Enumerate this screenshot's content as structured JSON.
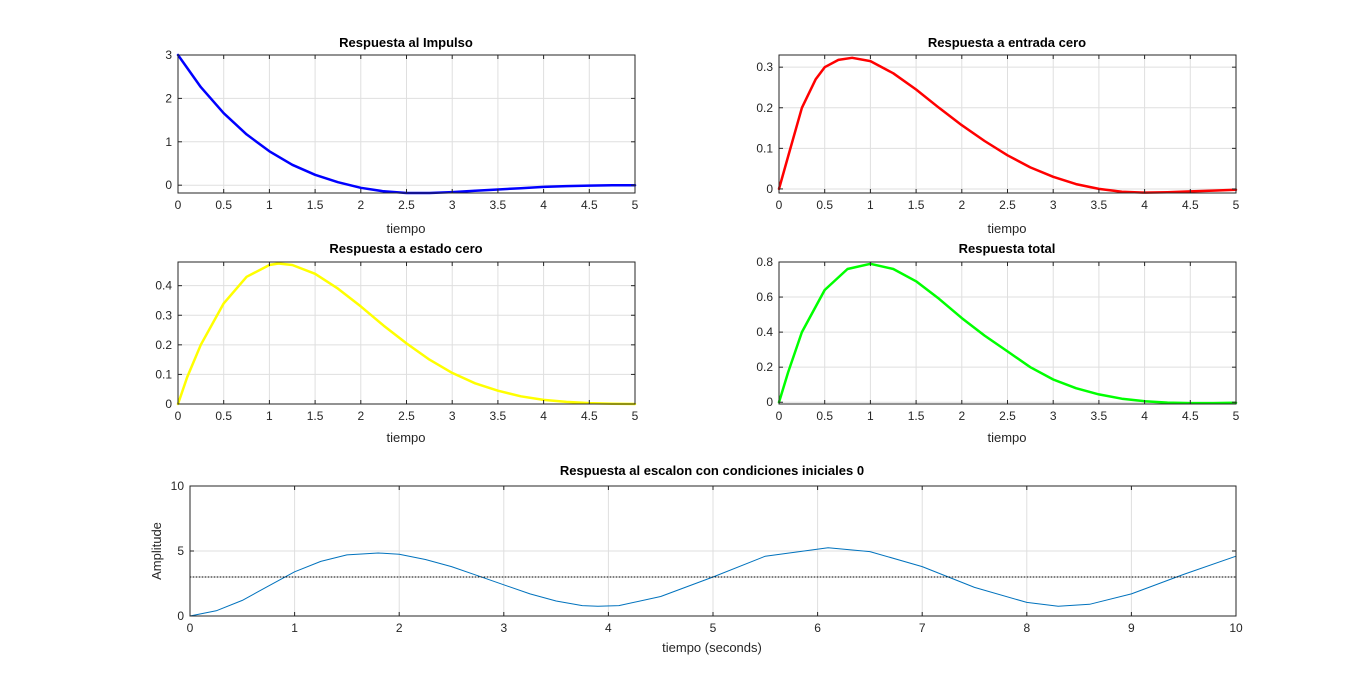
{
  "figure": {
    "background": "#ffffff",
    "axes_color": "#262626",
    "grid_color": "#dfdfdf"
  },
  "chart_data": [
    {
      "type": "line",
      "title": "Respuesta al Impulso",
      "xlabel": "tiempo",
      "ylabel": "",
      "xlim": [
        0,
        5
      ],
      "ylim": [
        -0.18,
        3.0
      ],
      "grid": true,
      "xticks": [
        "0",
        "0.5",
        "1",
        "1.5",
        "2",
        "2.5",
        "3",
        "3.5",
        "4",
        "4.5",
        "5"
      ],
      "yticks": [
        "0",
        "1",
        "2",
        "3"
      ],
      "series": [
        {
          "color": "#0000ff",
          "line_width": 2.5,
          "x": [
            0,
            0.25,
            0.5,
            0.75,
            1.0,
            1.25,
            1.5,
            1.75,
            2.0,
            2.25,
            2.5,
            2.75,
            3.0,
            3.25,
            3.5,
            3.75,
            4.0,
            4.25,
            4.5,
            4.75,
            5.0
          ],
          "y": [
            3.0,
            2.26,
            1.66,
            1.17,
            0.78,
            0.47,
            0.24,
            0.07,
            -0.06,
            -0.14,
            -0.18,
            -0.18,
            -0.16,
            -0.13,
            -0.1,
            -0.07,
            -0.04,
            -0.02,
            -0.01,
            0.0,
            0.0
          ]
        }
      ]
    },
    {
      "type": "line",
      "title": "Respuesta a entrada cero",
      "xlabel": "tiempo",
      "ylabel": "",
      "xlim": [
        0,
        5
      ],
      "ylim": [
        -0.01,
        0.33
      ],
      "grid": true,
      "xticks": [
        "0",
        "0.5",
        "1",
        "1.5",
        "2",
        "2.5",
        "3",
        "3.5",
        "4",
        "4.5",
        "5"
      ],
      "yticks": [
        "0",
        "0.1",
        "0.2",
        "0.3"
      ],
      "series": [
        {
          "color": "#ff0000",
          "line_width": 2.5,
          "x": [
            0,
            0.1,
            0.25,
            0.4,
            0.5,
            0.65,
            0.8,
            1.0,
            1.25,
            1.5,
            1.75,
            2.0,
            2.25,
            2.5,
            2.75,
            3.0,
            3.25,
            3.5,
            3.75,
            4.0,
            4.25,
            4.5,
            4.75,
            5.0
          ],
          "y": [
            0,
            0.08,
            0.2,
            0.27,
            0.3,
            0.318,
            0.323,
            0.315,
            0.285,
            0.245,
            0.2,
            0.157,
            0.118,
            0.083,
            0.053,
            0.03,
            0.012,
            0.0,
            -0.007,
            -0.009,
            -0.008,
            -0.006,
            -0.004,
            -0.002
          ]
        }
      ]
    },
    {
      "type": "line",
      "title": "Respuesta a estado cero",
      "xlabel": "tiempo",
      "ylabel": "",
      "xlim": [
        0,
        5
      ],
      "ylim": [
        0,
        0.48
      ],
      "grid": true,
      "xticks": [
        "0",
        "0.5",
        "1",
        "1.5",
        "2",
        "2.5",
        "3",
        "3.5",
        "4",
        "4.5",
        "5"
      ],
      "yticks": [
        "0",
        "0.1",
        "0.2",
        "0.3",
        "0.4"
      ],
      "series": [
        {
          "color": "#ffff00",
          "line_width": 2.5,
          "x": [
            0,
            0.1,
            0.25,
            0.5,
            0.75,
            1.0,
            1.1,
            1.25,
            1.5,
            1.75,
            2.0,
            2.25,
            2.5,
            2.75,
            3.0,
            3.25,
            3.5,
            3.75,
            4.0,
            4.25,
            4.5,
            4.75,
            5.0
          ],
          "y": [
            0,
            0.09,
            0.2,
            0.34,
            0.43,
            0.47,
            0.475,
            0.47,
            0.44,
            0.39,
            0.33,
            0.265,
            0.205,
            0.15,
            0.105,
            0.07,
            0.045,
            0.026,
            0.014,
            0.007,
            0.003,
            0.001,
            0.0
          ]
        }
      ]
    },
    {
      "type": "line",
      "title": "Respuesta total",
      "xlabel": "tiempo",
      "ylabel": "",
      "xlim": [
        0,
        5
      ],
      "ylim": [
        -0.01,
        0.8
      ],
      "grid": true,
      "xticks": [
        "0",
        "0.5",
        "1",
        "1.5",
        "2",
        "2.5",
        "3",
        "3.5",
        "4",
        "4.5",
        "5"
      ],
      "yticks": [
        "0",
        "0.2",
        "0.4",
        "0.6",
        "0.8"
      ],
      "series": [
        {
          "color": "#00ff00",
          "line_width": 2.5,
          "x": [
            0,
            0.1,
            0.25,
            0.5,
            0.75,
            1.0,
            1.25,
            1.5,
            1.75,
            2.0,
            2.25,
            2.5,
            2.75,
            3.0,
            3.25,
            3.5,
            3.75,
            4.0,
            4.25,
            4.5,
            4.75,
            5.0
          ],
          "y": [
            0,
            0.17,
            0.4,
            0.64,
            0.76,
            0.79,
            0.76,
            0.69,
            0.59,
            0.48,
            0.38,
            0.29,
            0.2,
            0.13,
            0.08,
            0.045,
            0.02,
            0.006,
            -0.002,
            -0.005,
            -0.005,
            -0.003
          ]
        }
      ]
    },
    {
      "type": "line",
      "title": "Respuesta al escalon con condiciones iniciales 0",
      "xlabel": "tiempo (seconds)",
      "ylabel": "Amplitude",
      "xlim": [
        0,
        10
      ],
      "ylim": [
        0,
        10
      ],
      "grid": true,
      "xticks": [
        "0",
        "1",
        "2",
        "3",
        "4",
        "5",
        "6",
        "7",
        "8",
        "9",
        "10"
      ],
      "yticks": [
        "0",
        "5",
        "10"
      ],
      "series": [
        {
          "color": "#0072bd",
          "line_width": 1,
          "x": [
            0,
            0.25,
            0.5,
            0.75,
            1.0,
            1.25,
            1.5,
            1.8,
            2.0,
            2.25,
            2.5,
            2.75,
            3.0,
            3.25,
            3.5,
            3.75,
            3.9,
            4.1,
            4.5,
            5.0,
            5.5,
            6.1,
            6.5,
            7.0,
            7.5,
            8.0,
            8.3,
            8.6,
            9.0,
            9.5,
            10.0
          ],
          "y": [
            0,
            0.4,
            1.2,
            2.3,
            3.4,
            4.2,
            4.7,
            4.85,
            4.75,
            4.35,
            3.8,
            3.1,
            2.4,
            1.7,
            1.15,
            0.8,
            0.75,
            0.8,
            1.5,
            3.0,
            4.6,
            5.25,
            4.95,
            3.8,
            2.2,
            1.05,
            0.75,
            0.9,
            1.7,
            3.2,
            4.6
          ],
          "style": "solid"
        },
        {
          "color": "#000000",
          "line_width": 1,
          "x": [
            0,
            10
          ],
          "y": [
            3,
            3
          ],
          "style": "dotted"
        }
      ]
    }
  ]
}
